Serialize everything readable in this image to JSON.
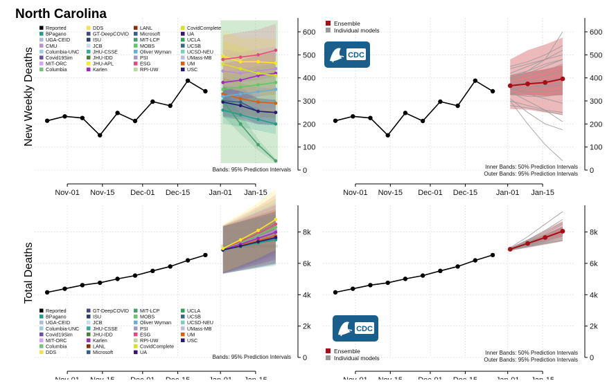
{
  "page": {
    "title": "North Carolina"
  },
  "rows": {
    "weekly": {
      "ylabel": "New Weekly Deaths"
    },
    "cumulative": {
      "ylabel": "Total Deaths"
    }
  },
  "logo": {
    "text": "CDC",
    "bg": "#1a5f8c"
  },
  "notes": {
    "left_weekly": "Bands: 95% Prediction Intervals",
    "left_cumulative": "Bands: 95% Prediction Intervals",
    "right_inner": "Inner Bands: 50% Prediction Intervals",
    "right_outer": "Outer Bands: 95% Prediction Intervals"
  },
  "ensemble_legend": {
    "ensemble": "Ensemble",
    "individual": "Individual models"
  },
  "legend_top": [
    {
      "name": "Reported",
      "color": "#000000"
    },
    {
      "name": "BPagano",
      "color": "#1f9e89"
    },
    {
      "name": "UGA-CEID",
      "color": "#a6bddb"
    },
    {
      "name": "CMU",
      "color": "#b78fd6"
    },
    {
      "name": "Columbia-UNC",
      "color": "#9ecae1"
    },
    {
      "name": "Covid19Sim",
      "color": "#6a51a3"
    },
    {
      "name": "MIT-ORC",
      "color": "#d7a1f9"
    },
    {
      "name": "Columbia",
      "color": "#74c476"
    },
    {
      "name": "DDS",
      "color": "#f5e14b"
    },
    {
      "name": "GT-DeepCOVID",
      "color": "#3f4a8a"
    },
    {
      "name": "ISU",
      "color": "#2c3e70"
    },
    {
      "name": "JCB",
      "color": "#c6dbef"
    },
    {
      "name": "JHU-CSSE",
      "color": "#38a89d"
    },
    {
      "name": "JHU-IDD",
      "color": "#4d7d3a"
    },
    {
      "name": "JHU-APL",
      "color": "#fde725"
    },
    {
      "name": "Karlen",
      "color": "#9d2bbd"
    },
    {
      "name": "LANL",
      "color": "#8c2d04"
    },
    {
      "name": "Microsoft",
      "color": "#35608d"
    },
    {
      "name": "MIT-LCP",
      "color": "#45a06b"
    },
    {
      "name": "MOBS",
      "color": "#5ec962"
    },
    {
      "name": "Oliver Wyman",
      "color": "#6baed6"
    },
    {
      "name": "PSI",
      "color": "#9e9ac8"
    },
    {
      "name": "ESG",
      "color": "#e34a7a"
    },
    {
      "name": "RPI-UW",
      "color": "#b5d99c"
    },
    {
      "name": "CovidComplete",
      "color": "#d9e021"
    },
    {
      "name": "UA",
      "color": "#3b0f70"
    },
    {
      "name": "UCLA",
      "color": "#2ca25f"
    },
    {
      "name": "UCSB",
      "color": "#31688e"
    },
    {
      "name": "UCSD-NEU",
      "color": "#7fcdbb"
    },
    {
      "name": "UMass-MB",
      "color": "#bcbddc"
    },
    {
      "name": "UM",
      "color": "#d95f0e"
    },
    {
      "name": "USC",
      "color": "#271a6e"
    }
  ],
  "legend_bottom": [
    {
      "name": "Reported",
      "color": "#000000"
    },
    {
      "name": "BPagano",
      "color": "#1f9e89"
    },
    {
      "name": "UGA-CEID",
      "color": "#a6bddb"
    },
    {
      "name": "Columbia-UNC",
      "color": "#9ecae1"
    },
    {
      "name": "Covid19Sim",
      "color": "#6a51a3"
    },
    {
      "name": "MIT-ORC",
      "color": "#d7a1f9"
    },
    {
      "name": "Columbia",
      "color": "#74c476"
    },
    {
      "name": "DDS",
      "color": "#f5e14b"
    },
    {
      "name": "GT-DeepCOVID",
      "color": "#3f4a8a"
    },
    {
      "name": "ISU",
      "color": "#2c3e70"
    },
    {
      "name": "JCB",
      "color": "#c6dbef"
    },
    {
      "name": "JHU-CSSE",
      "color": "#38a89d"
    },
    {
      "name": "JHU-IDD",
      "color": "#4d7d3a"
    },
    {
      "name": "Karlen",
      "color": "#9d2bbd"
    },
    {
      "name": "LANL",
      "color": "#8c2d04"
    },
    {
      "name": "Microsoft",
      "color": "#35608d"
    },
    {
      "name": "MIT-LCP",
      "color": "#45a06b"
    },
    {
      "name": "MOBS",
      "color": "#5ec962"
    },
    {
      "name": "Oliver Wyman",
      "color": "#6baed6"
    },
    {
      "name": "PSI",
      "color": "#9e9ac8"
    },
    {
      "name": "ESG",
      "color": "#e34a7a"
    },
    {
      "name": "RPI-UW",
      "color": "#b5d99c"
    },
    {
      "name": "CovidComplete",
      "color": "#d9e021"
    },
    {
      "name": "UA",
      "color": "#3b0f70"
    },
    {
      "name": "UCLA",
      "color": "#2ca25f"
    },
    {
      "name": "UCSB",
      "color": "#31688e"
    },
    {
      "name": "UCSD-NEU",
      "color": "#7fcdbb"
    },
    {
      "name": "UMass-MB",
      "color": "#bcbddc"
    },
    {
      "name": "UM",
      "color": "#d95f0e"
    },
    {
      "name": "USC",
      "color": "#271a6e"
    }
  ],
  "colors": {
    "ensemble": "#a50f15",
    "ensemble_band_outer": "#e7a3a6",
    "ensemble_band_inner": "#c9585e",
    "individual": "#999999",
    "reported": "#000000"
  },
  "chart_data": [
    {
      "id": "weekly-models",
      "type": "line",
      "x_ticks": [
        "Nov-01",
        "Nov-15",
        "Dec-01",
        "Dec-15",
        "Jan-01",
        "Jan-15"
      ],
      "x_tick_dates": [
        "2020-11-01",
        "2020-11-15",
        "2020-12-01",
        "2020-12-15",
        "2021-01-01",
        "2021-01-15"
      ],
      "xlim": [
        "2020-10-19",
        "2021-01-28"
      ],
      "y_ticks": [
        "0",
        "100",
        "200",
        "300",
        "400",
        "500",
        "600"
      ],
      "ylim": [
        0,
        660
      ],
      "reported": {
        "dates": [
          "2020-10-24",
          "2020-10-31",
          "2020-11-07",
          "2020-11-14",
          "2020-11-21",
          "2020-11-28",
          "2020-12-05",
          "2020-12-12",
          "2020-12-19",
          "2020-12-26"
        ],
        "values": [
          214,
          233,
          226,
          151,
          248,
          213,
          297,
          279,
          388,
          342
        ]
      },
      "forecast_dates": [
        "2021-01-02",
        "2021-01-09",
        "2021-01-16",
        "2021-01-23"
      ],
      "models": [
        {
          "color": "#fde725",
          "values": [
            495,
            470,
            470,
            465
          ]
        },
        {
          "color": "#e34a7a",
          "values": [
            480,
            490,
            500,
            520
          ]
        },
        {
          "color": "#b78fd6",
          "values": [
            430,
            420,
            430,
            440
          ]
        },
        {
          "color": "#35608d",
          "values": [
            300,
            295,
            255,
            250
          ]
        },
        {
          "color": "#d95f0e",
          "values": [
            330,
            310,
            295,
            290
          ]
        },
        {
          "color": "#5ec962",
          "values": [
            350,
            360,
            370,
            380
          ]
        },
        {
          "color": "#1f9e89",
          "values": [
            260,
            240,
            220,
            200
          ]
        },
        {
          "color": "#9d2bbd",
          "values": [
            380,
            390,
            410,
            420
          ]
        },
        {
          "color": "#45a06b",
          "values": [
            300,
            200,
            110,
            40
          ]
        },
        {
          "color": "#6baed6",
          "values": [
            320,
            330,
            340,
            350
          ]
        },
        {
          "color": "#271a6e",
          "values": [
            295,
            280,
            255,
            250
          ]
        },
        {
          "color": "#d9e021",
          "values": [
            460,
            440,
            420,
            410
          ]
        }
      ],
      "band": {
        "lower": [
          260,
          200,
          100,
          30
        ],
        "upper": [
          650,
          650,
          650,
          650
        ]
      }
    },
    {
      "id": "weekly-ensemble",
      "type": "line",
      "x_ticks": [
        "Nov-01",
        "Nov-15",
        "Dec-01",
        "Dec-15",
        "Jan-01",
        "Jan-15"
      ],
      "y_ticks": [
        "0",
        "100",
        "200",
        "300",
        "400",
        "500",
        "600"
      ],
      "ylim": [
        0,
        660
      ],
      "reported": {
        "dates": [
          "2020-10-24",
          "2020-10-31",
          "2020-11-07",
          "2020-11-14",
          "2020-11-21",
          "2020-11-28",
          "2020-12-05",
          "2020-12-12",
          "2020-12-19",
          "2020-12-26"
        ],
        "values": [
          214,
          233,
          226,
          151,
          248,
          213,
          297,
          279,
          388,
          342
        ]
      },
      "forecast_dates": [
        "2021-01-02",
        "2021-01-09",
        "2021-01-16",
        "2021-01-23"
      ],
      "ensemble": {
        "values": [
          366,
          374,
          380,
          396
        ],
        "lower95": [
          265,
          262,
          250,
          240
        ],
        "upper95": [
          480,
          520,
          545,
          575
        ],
        "lower50": [
          325,
          325,
          322,
          325
        ],
        "upper50": [
          410,
          425,
          438,
          455
        ]
      },
      "individual": [
        [
          300,
          280,
          260,
          250
        ],
        [
          330,
          320,
          320,
          330
        ],
        [
          400,
          420,
          450,
          480
        ],
        [
          350,
          360,
          370,
          380
        ],
        [
          380,
          390,
          410,
          430
        ],
        [
          420,
          450,
          480,
          520
        ],
        [
          360,
          330,
          310,
          290
        ],
        [
          340,
          300,
          260,
          210
        ],
        [
          390,
          410,
          430,
          460
        ],
        [
          310,
          250,
          200,
          175
        ],
        [
          370,
          380,
          390,
          400
        ],
        [
          450,
          470,
          500,
          540
        ],
        [
          280,
          270,
          255,
          240
        ],
        [
          330,
          350,
          360,
          370
        ],
        [
          395,
          430,
          480,
          600
        ],
        [
          360,
          360,
          365,
          370
        ],
        [
          300,
          200,
          110,
          40
        ],
        [
          410,
          430,
          460,
          480
        ],
        [
          350,
          340,
          340,
          345
        ],
        [
          440,
          460,
          480,
          500
        ]
      ]
    },
    {
      "id": "cumulative-models",
      "type": "line",
      "x_ticks": [
        "Nov-01",
        "Nov-15",
        "Dec-01",
        "Dec-15",
        "Jan-01",
        "Jan-15"
      ],
      "y_ticks": [
        "0",
        "2k",
        "4k",
        "6k",
        "8k"
      ],
      "ylim": [
        0,
        9700
      ],
      "reported": {
        "dates": [
          "2020-10-24",
          "2020-10-31",
          "2020-11-07",
          "2020-11-14",
          "2020-11-21",
          "2020-11-28",
          "2020-12-05",
          "2020-12-12",
          "2020-12-19",
          "2020-12-26"
        ],
        "values": [
          4150,
          4380,
          4610,
          4760,
          5010,
          5220,
          5520,
          5800,
          6190,
          6530
        ]
      },
      "forecast_dates": [
        "2021-01-02",
        "2021-01-09",
        "2021-01-16",
        "2021-01-23"
      ],
      "models": [
        {
          "color": "#e34a7a",
          "values": [
            6900,
            7400,
            7900,
            8500
          ]
        },
        {
          "color": "#5ec962",
          "values": [
            6900,
            7300,
            7800,
            8300
          ]
        },
        {
          "color": "#b78fd6",
          "values": [
            6880,
            7250,
            7650,
            8100
          ]
        },
        {
          "color": "#35608d",
          "values": [
            6850,
            7100,
            7350,
            7600
          ]
        },
        {
          "color": "#d95f0e",
          "values": [
            6860,
            7150,
            7450,
            7750
          ]
        },
        {
          "color": "#1f9e89",
          "values": [
            6840,
            7080,
            7300,
            7500
          ]
        },
        {
          "color": "#9d2bbd",
          "values": [
            6870,
            7220,
            7600,
            7980
          ]
        },
        {
          "color": "#271a6e",
          "values": [
            6850,
            7100,
            7380,
            7650
          ]
        },
        {
          "color": "#fde725",
          "values": [
            6950,
            7500,
            8100,
            8800
          ]
        }
      ],
      "band": {
        "lower": [
          6650,
          6750,
          6900,
          7000
        ],
        "upper": [
          7200,
          8100,
          8900,
          9600
        ]
      }
    },
    {
      "id": "cumulative-ensemble",
      "type": "line",
      "x_ticks": [
        "Nov-01",
        "Nov-15",
        "Dec-01",
        "Dec-15",
        "Jan-01",
        "Jan-15"
      ],
      "y_ticks": [
        "0",
        "2k",
        "4k",
        "6k",
        "8k"
      ],
      "ylim": [
        0,
        9700
      ],
      "reported": {
        "dates": [
          "2020-10-24",
          "2020-10-31",
          "2020-11-07",
          "2020-11-14",
          "2020-11-21",
          "2020-11-28",
          "2020-12-05",
          "2020-12-12",
          "2020-12-19",
          "2020-12-26"
        ],
        "values": [
          4150,
          4380,
          4610,
          4760,
          5010,
          5220,
          5520,
          5800,
          6190,
          6530
        ]
      },
      "forecast_dates": [
        "2021-01-02",
        "2021-01-09",
        "2021-01-16",
        "2021-01-23"
      ],
      "ensemble": {
        "values": [
          6900,
          7270,
          7650,
          8050
        ],
        "lower95": [
          6800,
          7000,
          7200,
          7400
        ],
        "upper95": [
          7020,
          7520,
          8100,
          8700
        ],
        "lower50": [
          6860,
          7150,
          7430,
          7730
        ],
        "upper50": [
          6950,
          7380,
          7850,
          8350
        ]
      },
      "individual": [
        [
          6850,
          7100,
          7350,
          7600
        ],
        [
          6880,
          7250,
          7650,
          8100
        ],
        [
          6900,
          7400,
          7900,
          8500
        ],
        [
          6950,
          7500,
          8100,
          8800
        ],
        [
          7000,
          7700,
          8500,
          9300
        ],
        [
          6860,
          7150,
          7450,
          7750
        ],
        [
          6870,
          7220,
          7600,
          7980
        ],
        [
          6840,
          7080,
          7300,
          7500
        ],
        [
          6900,
          7300,
          7800,
          8300
        ],
        [
          6920,
          7350,
          7800,
          8250
        ],
        [
          6880,
          7200,
          7550,
          7900
        ],
        [
          6860,
          7120,
          7400,
          7700
        ],
        [
          6930,
          7450,
          8000,
          8600
        ],
        [
          6850,
          7050,
          7250,
          7450
        ]
      ]
    }
  ]
}
